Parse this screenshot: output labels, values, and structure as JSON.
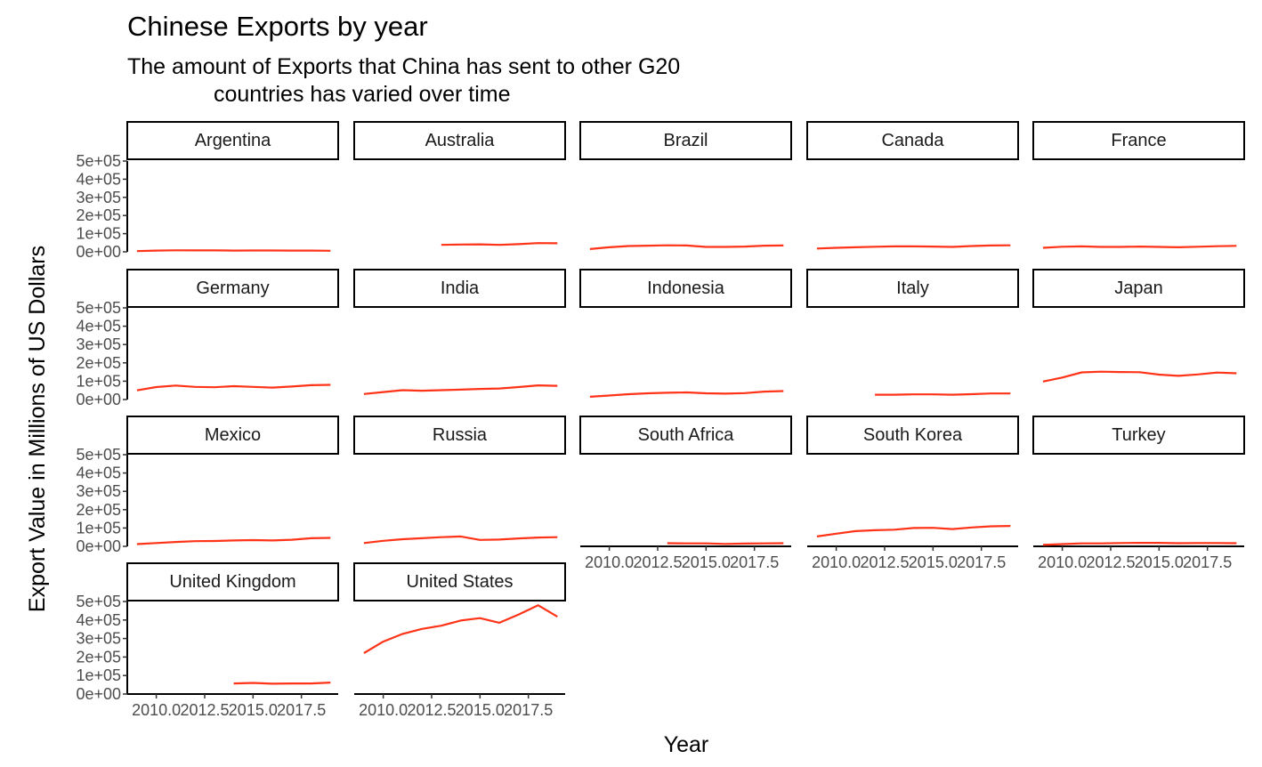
{
  "chart_data": {
    "type": "line",
    "title": "Chinese Exports by year",
    "subtitle_lines": [
      "The amount of Exports that China has sent to other G20",
      "countries has varied over time"
    ],
    "xlabel": "Year",
    "ylabel": "Export Value in Millions of US Dollars",
    "xlim": [
      2008.5,
      2019.4
    ],
    "ylim": [
      0,
      500000
    ],
    "x_ticks": [
      2010.0,
      2012.5,
      2015.0,
      2017.5
    ],
    "x_tick_labels": [
      "2010.0",
      "2012.5",
      "2015.0",
      "2017.5"
    ],
    "y_ticks": [
      0,
      100000,
      200000,
      300000,
      400000,
      500000
    ],
    "y_tick_labels": [
      "0e+00",
      "1e+05",
      "2e+05",
      "3e+05",
      "4e+05",
      "5e+05"
    ],
    "line_color": "#FF3318",
    "grid": false,
    "facets": [
      {
        "name": "Argentina",
        "x": [
          2009,
          2010,
          2011,
          2012,
          2013,
          2014,
          2015,
          2016,
          2017,
          2018,
          2019
        ],
        "y": [
          4000,
          7000,
          8500,
          8000,
          8000,
          7000,
          7500,
          7500,
          7000,
          7000,
          6000
        ]
      },
      {
        "name": "Australia",
        "x": [
          2013,
          2014,
          2015,
          2016,
          2017,
          2018,
          2019
        ],
        "y": [
          38000,
          40000,
          41000,
          38000,
          42000,
          48000,
          47000
        ]
      },
      {
        "name": "Brazil",
        "x": [
          2009,
          2010,
          2011,
          2012,
          2013,
          2014,
          2015,
          2016,
          2017,
          2018,
          2019
        ],
        "y": [
          15000,
          25000,
          32000,
          34000,
          36000,
          35000,
          27000,
          27000,
          29000,
          34000,
          35000
        ]
      },
      {
        "name": "Canada",
        "x": [
          2009,
          2010,
          2011,
          2012,
          2013,
          2014,
          2015,
          2016,
          2017,
          2018,
          2019
        ],
        "y": [
          18000,
          22000,
          25000,
          28000,
          30000,
          30000,
          29000,
          27000,
          32000,
          35000,
          36000
        ]
      },
      {
        "name": "France",
        "x": [
          2009,
          2010,
          2011,
          2012,
          2013,
          2014,
          2015,
          2016,
          2017,
          2018,
          2019
        ],
        "y": [
          22000,
          28000,
          30000,
          27000,
          27000,
          29000,
          27000,
          25000,
          28000,
          31000,
          33000
        ]
      },
      {
        "name": "Germany",
        "x": [
          2009,
          2010,
          2011,
          2012,
          2013,
          2014,
          2015,
          2016,
          2017,
          2018,
          2019
        ],
        "y": [
          50000,
          68000,
          76000,
          69000,
          67000,
          73000,
          69000,
          65000,
          71000,
          78000,
          80000
        ]
      },
      {
        "name": "India",
        "x": [
          2009,
          2010,
          2011,
          2012,
          2013,
          2014,
          2015,
          2016,
          2017,
          2018,
          2019
        ],
        "y": [
          30000,
          41000,
          51000,
          48000,
          51000,
          54000,
          58000,
          60000,
          68000,
          77000,
          75000
        ]
      },
      {
        "name": "Indonesia",
        "x": [
          2009,
          2010,
          2011,
          2012,
          2013,
          2014,
          2015,
          2016,
          2017,
          2018,
          2019
        ],
        "y": [
          15000,
          22000,
          29000,
          34000,
          37000,
          39000,
          34000,
          32000,
          35000,
          43000,
          46000
        ]
      },
      {
        "name": "Italy",
        "x": [
          2012,
          2013,
          2014,
          2015,
          2016,
          2017,
          2018,
          2019
        ],
        "y": [
          26000,
          26000,
          28000,
          28000,
          26000,
          29000,
          33000,
          33000
        ]
      },
      {
        "name": "Japan",
        "x": [
          2009,
          2010,
          2011,
          2012,
          2013,
          2014,
          2015,
          2016,
          2017,
          2018,
          2019
        ],
        "y": [
          98000,
          120000,
          148000,
          152000,
          150000,
          149000,
          136000,
          129000,
          137000,
          147000,
          143000
        ]
      },
      {
        "name": "Mexico",
        "x": [
          2009,
          2010,
          2011,
          2012,
          2013,
          2014,
          2015,
          2016,
          2017,
          2018,
          2019
        ],
        "y": [
          12000,
          18000,
          24000,
          28000,
          29000,
          32000,
          34000,
          32000,
          36000,
          44000,
          46000
        ]
      },
      {
        "name": "Russia",
        "x": [
          2009,
          2010,
          2011,
          2012,
          2013,
          2014,
          2015,
          2016,
          2017,
          2018,
          2019
        ],
        "y": [
          18000,
          30000,
          39000,
          44000,
          50000,
          54000,
          35000,
          37000,
          43000,
          48000,
          50000
        ]
      },
      {
        "name": "South Africa",
        "x": [
          2013,
          2014,
          2015,
          2016,
          2017,
          2018,
          2019
        ],
        "y": [
          17000,
          16000,
          16000,
          13000,
          15000,
          16000,
          17000
        ]
      },
      {
        "name": "South Korea",
        "x": [
          2009,
          2010,
          2011,
          2012,
          2013,
          2014,
          2015,
          2016,
          2017,
          2018,
          2019
        ],
        "y": [
          54000,
          69000,
          83000,
          88000,
          91000,
          100000,
          101000,
          94000,
          103000,
          109000,
          111000
        ]
      },
      {
        "name": "Turkey",
        "x": [
          2009,
          2010,
          2011,
          2012,
          2013,
          2014,
          2015,
          2016,
          2017,
          2018,
          2019
        ],
        "y": [
          8000,
          12000,
          16000,
          16000,
          18000,
          19000,
          19000,
          17000,
          18000,
          18000,
          17000
        ]
      },
      {
        "name": "United Kingdom",
        "x": [
          2014,
          2015,
          2016,
          2017,
          2018,
          2019
        ],
        "y": [
          57000,
          60000,
          56000,
          57000,
          57000,
          62000
        ]
      },
      {
        "name": "United States",
        "x": [
          2009,
          2010,
          2011,
          2012,
          2013,
          2014,
          2015,
          2016,
          2017,
          2018,
          2019
        ],
        "y": [
          221000,
          283000,
          325000,
          352000,
          369000,
          397000,
          410000,
          385000,
          430000,
          480000,
          418000
        ]
      }
    ]
  }
}
